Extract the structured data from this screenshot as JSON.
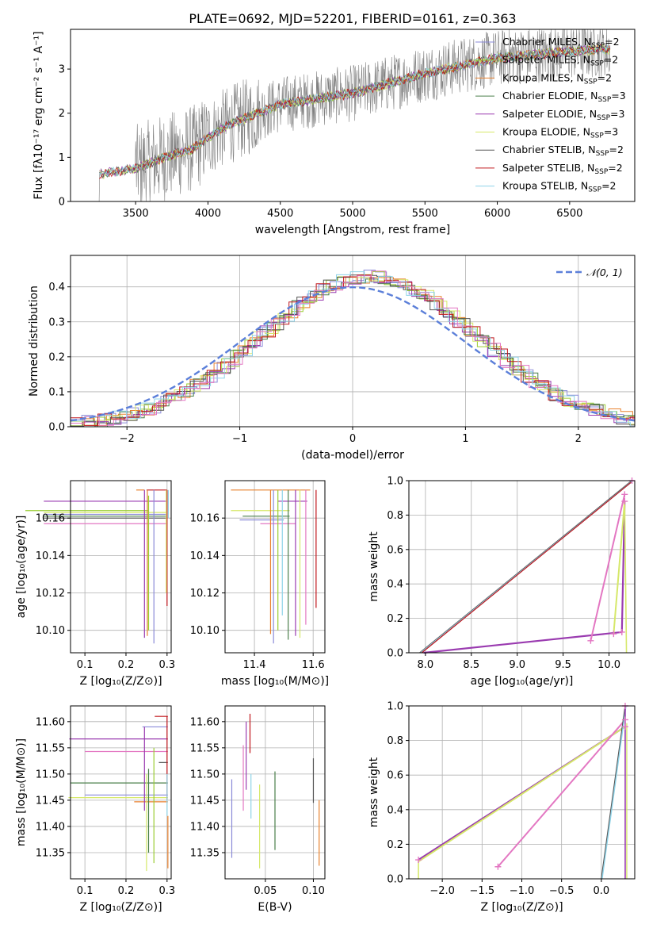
{
  "figure": {
    "title": "PLATE=0692, MJD=52201, FIBERID=0161, z=0.363",
    "colors": {
      "chabrier_miles": "#8a8ad8",
      "salpeter_miles": "#9acd32",
      "kroupa_miles": "#e8812e",
      "chabrier_elodie": "#4a7f4a",
      "salpeter_elodie": "#9a3bb0",
      "kroupa_elodie": "#d6e86a",
      "chabrier_stelib": "#555555",
      "salpeter_stelib": "#c0161c",
      "kroupa_stelib": "#8fd3e8",
      "pink": "#e377c2",
      "blue": "#5b7fd9",
      "data": "#808080"
    }
  },
  "legend_spectrum": [
    {
      "text": "Chabrier MILES, N",
      "sub": "SSP",
      "tail": "=2",
      "color": "#8a8ad8"
    },
    {
      "text": "Salpeter MILES, N",
      "sub": "SSP",
      "tail": "=2",
      "color": "#9acd32"
    },
    {
      "text": "Kroupa MILES, N",
      "sub": "SSP",
      "tail": "=2",
      "color": "#e8812e"
    },
    {
      "text": "Chabrier ELODIE, N",
      "sub": "SSP",
      "tail": "=3",
      "color": "#4a7f4a"
    },
    {
      "text": "Salpeter ELODIE, N",
      "sub": "SSP",
      "tail": "=3",
      "color": "#9a3bb0"
    },
    {
      "text": "Kroupa ELODIE, N",
      "sub": "SSP",
      "tail": "=3",
      "color": "#d6e86a"
    },
    {
      "text": "Chabrier STELIB, N",
      "sub": "SSP",
      "tail": "=2",
      "color": "#555555"
    },
    {
      "text": "Salpeter STELIB, N",
      "sub": "SSP",
      "tail": "=2",
      "color": "#c0161c"
    },
    {
      "text": "Kroupa STELIB, N",
      "sub": "SSP",
      "tail": "=2",
      "color": "#8fd3e8"
    }
  ],
  "chart_data": [
    {
      "id": "spectrum",
      "type": "line",
      "title": "PLATE=0692, MJD=52201, FIBERID=0161, z=0.363",
      "xlabel": "wavelength [Angstrom, rest frame]",
      "ylabel": "Flux [fλ10⁻¹⁷ erg cm⁻² s⁻¹ A⁻¹]",
      "xlim": [
        3050,
        6950
      ],
      "ylim": [
        0,
        3.9
      ],
      "xticks": [
        3500,
        4000,
        4500,
        5000,
        5500,
        6000,
        6500
      ],
      "yticks": [
        0,
        1,
        2,
        3
      ],
      "continuum_x": [
        3250,
        3500,
        3700,
        3900,
        4000,
        4150,
        4500,
        5000,
        5500,
        6000,
        6500,
        6750
      ],
      "continuum_y": [
        0.62,
        0.75,
        1.0,
        1.2,
        1.45,
        1.75,
        2.2,
        2.45,
        2.9,
        3.25,
        3.4,
        3.45
      ]
    },
    {
      "id": "residuals",
      "type": "line",
      "xlabel": "(data-model)/error",
      "ylabel": "Normed distribution",
      "xlim": [
        -2.5,
        2.5
      ],
      "ylim": [
        0,
        0.49
      ],
      "xticks": [
        -2,
        -1,
        0,
        1,
        2
      ],
      "yticks": [
        0.0,
        0.1,
        0.2,
        0.3,
        0.4
      ],
      "gaussian_legend": "𝒩(0, 1)",
      "grid": true,
      "legend": "upper right"
    },
    {
      "id": "age_vs_Z",
      "type": "scatter",
      "xlabel": "Z [log₁₀(Z/Z⊙)]",
      "ylabel": "age  [log₁₀(age/yr)]",
      "xlim": [
        0.065,
        0.31
      ],
      "ylim": [
        10.088,
        10.18
      ],
      "xticks": [
        0.1,
        0.2,
        0.3
      ],
      "yticks": [
        10.1,
        10.12,
        10.14,
        10.16
      ],
      "points": [
        {
          "z": 0.3,
          "age": 10.162,
          "zerr": 0.3,
          "ageup": 0.006,
          "agedown": 0.035,
          "color": "#8a8ad8"
        },
        {
          "z": 0.255,
          "age": 10.164,
          "zerr": 0.3,
          "ageup": 0.011,
          "agedown": 0.06,
          "color": "#9acd32"
        },
        {
          "z": 0.245,
          "age": 10.175,
          "zerr": 0.02,
          "ageup": 0.0,
          "agedown": 0.0,
          "color": "#e8812e"
        },
        {
          "z": 0.3,
          "age": 10.161,
          "zerr": 0.3,
          "ageup": 0.008,
          "agedown": 0.0,
          "color": "#4a7f4a"
        },
        {
          "z": 0.3,
          "age": 10.169,
          "zerr": 0.3,
          "ageup": 0.006,
          "agedown": 0.0,
          "color": "#9a3bb0"
        },
        {
          "z": 0.3,
          "age": 10.163,
          "zerr": 0.3,
          "ageup": 0.012,
          "agedown": 0.0,
          "color": "#d6e86a"
        },
        {
          "z": 0.3,
          "age": 10.16,
          "zerr": 0.3,
          "ageup": 0.015,
          "agedown": 0.0,
          "color": "#555555"
        },
        {
          "z": 0.3,
          "age": 10.175,
          "zerr": 0.05,
          "ageup": 0.0,
          "agedown": 0.062,
          "color": "#c0161c"
        },
        {
          "z": 0.3,
          "age": 10.157,
          "zerr": 0.3,
          "ageup": 0.018,
          "agedown": 0.0,
          "color": "#e377c2"
        }
      ]
    },
    {
      "id": "age_vs_mass",
      "type": "scatter",
      "xlabel": "mass [log₁₀(M/M⊙)]",
      "xlim": [
        11.3,
        11.64
      ],
      "ylim": [
        10.088,
        10.18
      ],
      "xticks": [
        11.4,
        11.6
      ],
      "yticks": [
        10.1,
        10.12,
        10.14,
        10.16
      ]
    },
    {
      "id": "massweight_vs_age",
      "type": "line",
      "xlabel": "age  [log₁₀(age/yr)]",
      "ylabel": "mass weight",
      "xlim": [
        7.82,
        10.28
      ],
      "ylim": [
        0,
        1
      ],
      "xticks": [
        8.0,
        8.5,
        9.0,
        9.5,
        10.0
      ],
      "yticks": [
        0.0,
        0.2,
        0.4,
        0.6,
        0.8,
        1.0
      ],
      "grid": true
    },
    {
      "id": "mass_vs_Z",
      "type": "scatter",
      "xlabel": "Z [log₁₀(Z/Z⊙)]",
      "ylabel": "mass [log₁₀(M/M⊙)]",
      "xlim": [
        0.065,
        0.31
      ],
      "ylim": [
        11.3,
        11.63
      ],
      "xticks": [
        0.1,
        0.2,
        0.3
      ],
      "yticks": [
        11.35,
        11.4,
        11.45,
        11.5,
        11.55,
        11.6
      ]
    },
    {
      "id": "mass_vs_ebv",
      "type": "scatter",
      "xlabel": "E(B-V)",
      "xlim": [
        0.008,
        0.112
      ],
      "ylim": [
        11.3,
        11.63
      ],
      "xticks": [
        0.05,
        0.1
      ],
      "yticks": [
        11.35,
        11.4,
        11.45,
        11.5,
        11.55,
        11.6
      ]
    },
    {
      "id": "massweight_vs_Z",
      "type": "line",
      "xlabel": "Z [log₁₀(Z/Z⊙)]",
      "ylabel": "mass weight",
      "xlim": [
        -2.42,
        0.42
      ],
      "ylim": [
        0,
        1
      ],
      "xticks": [
        -2.0,
        -1.5,
        -1.0,
        -0.5,
        0.0
      ],
      "yticks": [
        0.0,
        0.2,
        0.4,
        0.6,
        0.8,
        1.0
      ],
      "grid": true
    }
  ]
}
